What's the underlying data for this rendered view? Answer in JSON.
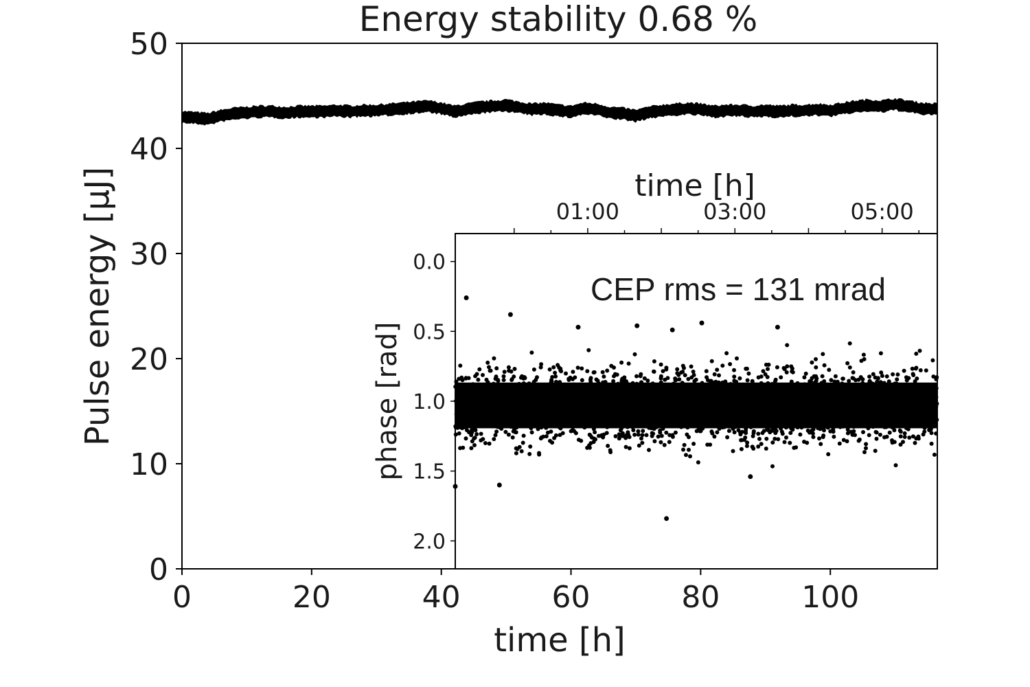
{
  "chart_data": [
    {
      "type": "line",
      "title": "Energy stability 0.68 %",
      "xlabel": "time [h]",
      "ylabel": "Pulse energy [µJ]",
      "xlim": [
        0,
        116.5
      ],
      "ylim": [
        0,
        50
      ],
      "xticks": [
        0,
        20,
        40,
        60,
        80,
        100
      ],
      "yticks": [
        0,
        10,
        20,
        30,
        40,
        50
      ],
      "grid": false,
      "series": [
        {
          "x": [
            0,
            2,
            4,
            6,
            8,
            10,
            12,
            14,
            16,
            18,
            20,
            22,
            24,
            26,
            28,
            30,
            32,
            34,
            36,
            38,
            40,
            42,
            44,
            46,
            48,
            50,
            52,
            54,
            56,
            58,
            60,
            62,
            64,
            66,
            68,
            70,
            72,
            74,
            76,
            78,
            80,
            82,
            84,
            86,
            88,
            90,
            92,
            94,
            96,
            98,
            100,
            102,
            104,
            106,
            108,
            110,
            112,
            114,
            116.5
          ],
          "y": [
            43.0,
            42.9,
            42.8,
            43.1,
            43.3,
            43.4,
            43.5,
            43.5,
            43.4,
            43.5,
            43.5,
            43.5,
            43.6,
            43.5,
            43.6,
            43.6,
            43.7,
            43.8,
            43.9,
            44.0,
            43.8,
            43.5,
            43.7,
            43.9,
            44.0,
            44.1,
            43.9,
            43.7,
            43.8,
            43.6,
            43.5,
            43.8,
            43.7,
            43.4,
            43.3,
            43.1,
            43.4,
            43.6,
            43.7,
            43.8,
            43.7,
            43.5,
            43.6,
            43.6,
            43.5,
            43.6,
            43.5,
            43.6,
            43.6,
            43.7,
            43.6,
            43.8,
            44.0,
            44.1,
            44.0,
            44.2,
            44.0,
            43.8,
            43.7
          ]
        }
      ]
    },
    {
      "type": "scatter",
      "xlabel": "time [h]",
      "ylabel": "phase [rad]",
      "annotation": "CEP rms = 131 mrad",
      "xticks": [
        "01:00",
        "03:00",
        "05:00"
      ],
      "xtick_hours": [
        1,
        3,
        5
      ],
      "xlim": [
        -0.8,
        5.75
      ],
      "ylim": [
        2.2,
        -0.2
      ],
      "y_inverted": true,
      "yticks": [
        "0.0",
        "0.5",
        "1.0",
        "1.5",
        "2.0"
      ],
      "ytick_values": [
        0.0,
        0.5,
        1.0,
        1.5,
        2.0
      ],
      "grid": false,
      "series": [
        {
          "center": 1.03,
          "core_spread": 0.131,
          "outliers": [
            {
              "x": -0.65,
              "y": 0.26
            },
            {
              "x": -0.05,
              "y": 0.38
            },
            {
              "x": 0.87,
              "y": 0.47
            },
            {
              "x": 1.67,
              "y": 0.46
            },
            {
              "x": 2.15,
              "y": 0.49
            },
            {
              "x": 2.55,
              "y": 0.44
            },
            {
              "x": 3.58,
              "y": 0.47
            },
            {
              "x": 2.07,
              "y": 1.84
            },
            {
              "x": 3.21,
              "y": 1.54
            },
            {
              "x": -0.2,
              "y": 1.6
            },
            {
              "x": -0.8,
              "y": 1.61
            }
          ]
        }
      ]
    }
  ]
}
